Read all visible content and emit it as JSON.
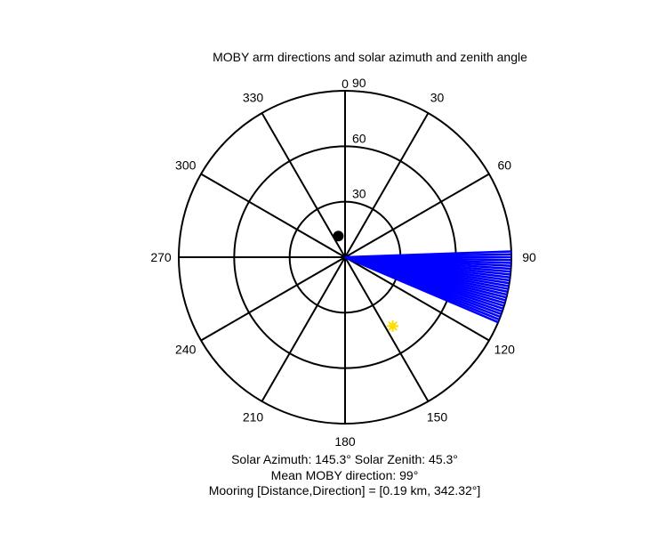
{
  "chart_data": {
    "type": "polar",
    "title": "MOBY arm directions and solar azimuth and zenith angle",
    "radial_axis": {
      "min": 0,
      "max": 90,
      "ticks": [
        30,
        60,
        90
      ],
      "tick_labels": [
        "30",
        "60",
        "90"
      ]
    },
    "angular_axis": {
      "zero_at": "top",
      "direction": "clockwise",
      "ticks": [
        0,
        30,
        60,
        90,
        120,
        150,
        180,
        210,
        240,
        270,
        300,
        330
      ],
      "tick_labels": [
        "0",
        "30",
        "60",
        "90",
        "120",
        "150",
        "180",
        "210",
        "240",
        "270",
        "300",
        "330"
      ]
    },
    "grid": true,
    "series": [
      {
        "marker": "line",
        "color": "#0000ff",
        "directions_deg": [
          88,
          89,
          90,
          91,
          92,
          93,
          94,
          95,
          96,
          97,
          98,
          99,
          100,
          101,
          102,
          103,
          104,
          105,
          106,
          107,
          108,
          109,
          110,
          111,
          112,
          113
        ],
        "radius": 90
      },
      {
        "marker": "filled-circle",
        "color": "#000000",
        "points": [
          {
            "angle_deg": 342.32,
            "r": 12
          }
        ]
      },
      {
        "marker": "sun-star",
        "color": "#ffdd00",
        "points": [
          {
            "angle_deg": 145.3,
            "r": 45.3
          }
        ]
      }
    ],
    "annotations": [
      "Solar Azimuth: 145.3°   Solar Zenith: 45.3°",
      "Mean MOBY direction: 99°",
      "Mooring [Distance,Direction] = [0.19 km, 342.32°]"
    ]
  }
}
